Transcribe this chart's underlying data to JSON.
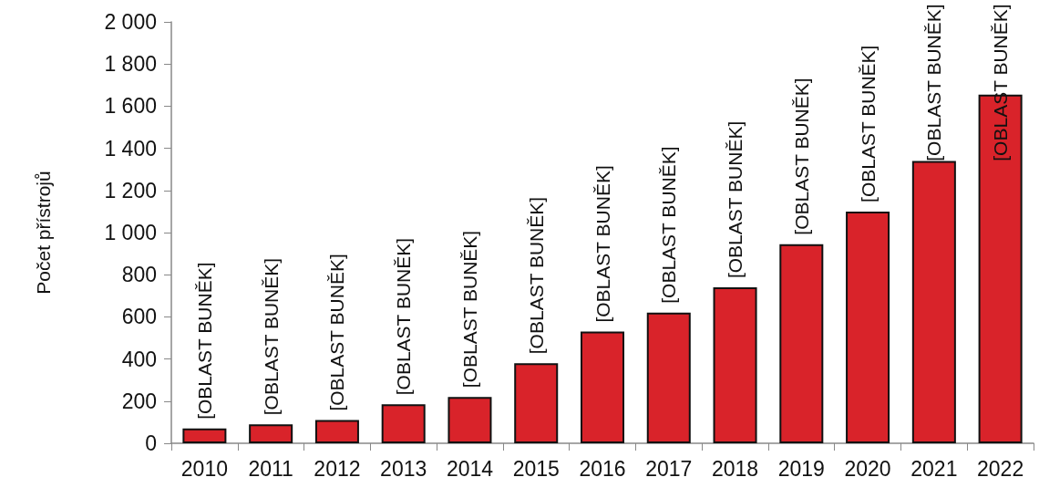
{
  "chart_data": {
    "type": "bar",
    "ylabel": "Počet přístrojů",
    "categories": [
      "2010",
      "2011",
      "2012",
      "2013",
      "2014",
      "2015",
      "2016",
      "2017",
      "2018",
      "2019",
      "2020",
      "2021",
      "2022"
    ],
    "values": [
      70,
      90,
      110,
      185,
      220,
      380,
      530,
      620,
      740,
      945,
      1100,
      1340,
      1655
    ],
    "value_labels": [
      "[OBLAST BUNĚK]",
      "[OBLAST BUNĚK]",
      "[OBLAST BUNĚK]",
      "[OBLAST BUNĚK]",
      "[OBLAST BUNĚK]",
      "[OBLAST BUNĚK]",
      "[OBLAST BUNĚK]",
      "[OBLAST BUNĚK]",
      "[OBLAST BUNĚK]",
      "[OBLAST BUNĚK]",
      "[OBLAST BUNĚK]",
      "[OBLAST BUNĚK]",
      "[OBLAST BUNĚK]"
    ],
    "color": "#d9232a",
    "ylim": [
      0,
      2000
    ],
    "yticks": [
      0,
      200,
      400,
      600,
      800,
      {
        "value": 1000,
        "label": "1 000"
      },
      {
        "value": 1200,
        "label": "1 200"
      },
      {
        "value": 1400,
        "label": "1 400"
      },
      {
        "value": 1600,
        "label": "1 600"
      },
      {
        "value": 1800,
        "label": "1 800"
      },
      {
        "value": 2000,
        "label": "2 000"
      }
    ],
    "grid": false
  }
}
